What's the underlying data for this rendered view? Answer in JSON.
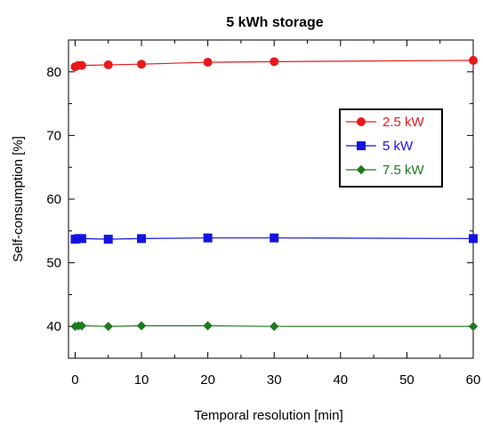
{
  "chart_data": {
    "type": "line",
    "title": "5 kWh storage",
    "xlabel": "Temporal resolution [min]",
    "ylabel": "Self-consumption [%]",
    "xlim": [
      -1,
      60
    ],
    "ylim": [
      35,
      85
    ],
    "xticks": [
      0,
      10,
      20,
      30,
      40,
      50,
      60
    ],
    "yticks": [
      40,
      50,
      60,
      70,
      80
    ],
    "grid": false,
    "legend_position": "right",
    "series": [
      {
        "name": "2.5 kW",
        "color": "#e8191b",
        "marker": "circle",
        "x": [
          0,
          0.5,
          1,
          5,
          10,
          20,
          30,
          60
        ],
        "y": [
          80.8,
          81.0,
          81.0,
          81.1,
          81.2,
          81.5,
          81.6,
          81.8
        ]
      },
      {
        "name": "5 kW",
        "color": "#1414e0",
        "marker": "square",
        "x": [
          0,
          0.5,
          1,
          5,
          10,
          20,
          30,
          60
        ],
        "y": [
          53.7,
          53.8,
          53.8,
          53.7,
          53.8,
          53.9,
          53.9,
          53.8
        ]
      },
      {
        "name": "7.5 kW",
        "color": "#1e7a1e",
        "marker": "diamond",
        "x": [
          0,
          0.5,
          1,
          5,
          10,
          20,
          30,
          60
        ],
        "y": [
          40.0,
          40.1,
          40.1,
          40.0,
          40.1,
          40.1,
          40.0,
          40.0
        ]
      }
    ]
  }
}
